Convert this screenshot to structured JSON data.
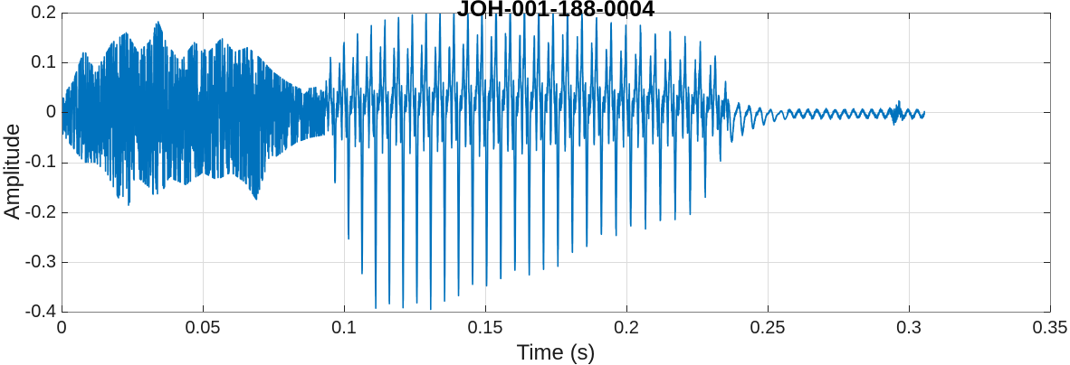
{
  "figure": {
    "background": "#ffffff"
  },
  "chart_data": {
    "type": "line",
    "title": "JOH-001-188-0004",
    "xlabel": "Time (s)",
    "ylabel": "Amplitude",
    "xlim": [
      0,
      0.35
    ],
    "ylim": [
      -0.4,
      0.2
    ],
    "xticks": [
      0,
      0.05,
      0.1,
      0.15,
      0.2,
      0.25,
      0.3,
      0.35
    ],
    "xtick_labels": [
      "0",
      "0.05",
      "0.1",
      "0.15",
      "0.2",
      "0.25",
      "0.3",
      "0.35"
    ],
    "yticks": [
      -0.4,
      -0.3,
      -0.2,
      -0.1,
      0,
      0.1,
      0.2
    ],
    "ytick_labels": [
      "-0.4",
      "-0.3",
      "-0.2",
      "-0.1",
      "0",
      "0.1",
      "0.2"
    ],
    "grid": true,
    "legend": null,
    "line_color": "#0072BD",
    "grid_color": "#DCDCDC",
    "axis_color": "#7F7F7F",
    "tick_color": "#262626",
    "text_color": "#1a1a1a",
    "signal": {
      "kind": "speech-waveform",
      "t_start": 0.0,
      "t_end": 0.3055,
      "segments": [
        {
          "name": "fricative-noise",
          "type": "noise",
          "t0": 0.0,
          "t1": 0.093,
          "upper_env": [
            [
              0,
              0.03
            ],
            [
              0.004,
              0.06
            ],
            [
              0.008,
              0.125
            ],
            [
              0.012,
              0.08
            ],
            [
              0.018,
              0.14
            ],
            [
              0.023,
              0.16
            ],
            [
              0.027,
              0.12
            ],
            [
              0.031,
              0.14
            ],
            [
              0.034,
              0.185
            ],
            [
              0.037,
              0.14
            ],
            [
              0.042,
              0.1
            ],
            [
              0.047,
              0.14
            ],
            [
              0.052,
              0.12
            ],
            [
              0.057,
              0.15
            ],
            [
              0.061,
              0.12
            ],
            [
              0.066,
              0.13
            ],
            [
              0.07,
              0.11
            ],
            [
              0.075,
              0.08
            ],
            [
              0.08,
              0.06
            ],
            [
              0.085,
              0.045
            ],
            [
              0.09,
              0.05
            ],
            [
              0.093,
              0.04
            ]
          ],
          "lower_env": [
            [
              0,
              -0.04
            ],
            [
              0.004,
              -0.07
            ],
            [
              0.008,
              -0.1
            ],
            [
              0.012,
              -0.1
            ],
            [
              0.016,
              -0.12
            ],
            [
              0.02,
              -0.17
            ],
            [
              0.023,
              -0.2
            ],
            [
              0.027,
              -0.13
            ],
            [
              0.031,
              -0.15
            ],
            [
              0.034,
              -0.18
            ],
            [
              0.038,
              -0.13
            ],
            [
              0.044,
              -0.145
            ],
            [
              0.05,
              -0.12
            ],
            [
              0.055,
              -0.135
            ],
            [
              0.06,
              -0.12
            ],
            [
              0.065,
              -0.14
            ],
            [
              0.069,
              -0.175
            ],
            [
              0.073,
              -0.1
            ],
            [
              0.078,
              -0.08
            ],
            [
              0.083,
              -0.06
            ],
            [
              0.088,
              -0.05
            ],
            [
              0.093,
              -0.045
            ]
          ]
        },
        {
          "name": "voiced-vowel",
          "type": "voiced",
          "t0": 0.093,
          "t1": 0.236,
          "f0_start": 210,
          "f0_end": 186,
          "upper_env": [
            [
              0.093,
              0.05
            ],
            [
              0.096,
              0.09
            ],
            [
              0.1,
              0.11
            ],
            [
              0.107,
              0.12
            ],
            [
              0.115,
              0.135
            ],
            [
              0.125,
              0.145
            ],
            [
              0.135,
              0.15
            ],
            [
              0.145,
              0.16
            ],
            [
              0.152,
              0.17
            ],
            [
              0.158,
              0.175
            ],
            [
              0.165,
              0.17
            ],
            [
              0.172,
              0.16
            ],
            [
              0.18,
              0.155
            ],
            [
              0.19,
              0.145
            ],
            [
              0.198,
              0.13
            ],
            [
              0.207,
              0.12
            ],
            [
              0.215,
              0.115
            ],
            [
              0.222,
              0.11
            ],
            [
              0.228,
              0.095
            ],
            [
              0.233,
              0.08
            ],
            [
              0.236,
              0.04
            ]
          ],
          "lower_env": [
            [
              0.093,
              -0.06
            ],
            [
              0.096,
              -0.12
            ],
            [
              0.099,
              -0.2
            ],
            [
              0.103,
              -0.28
            ],
            [
              0.107,
              -0.34
            ],
            [
              0.111,
              -0.385
            ],
            [
              0.117,
              -0.39
            ],
            [
              0.124,
              -0.385
            ],
            [
              0.132,
              -0.375
            ],
            [
              0.14,
              -0.365
            ],
            [
              0.148,
              -0.355
            ],
            [
              0.155,
              -0.345
            ],
            [
              0.162,
              -0.33
            ],
            [
              0.17,
              -0.315
            ],
            [
              0.178,
              -0.3
            ],
            [
              0.185,
              -0.275
            ],
            [
              0.19,
              -0.255
            ],
            [
              0.197,
              -0.24
            ],
            [
              0.204,
              -0.23
            ],
            [
              0.212,
              -0.22
            ],
            [
              0.22,
              -0.2
            ],
            [
              0.226,
              -0.195
            ],
            [
              0.23,
              -0.13
            ],
            [
              0.234,
              -0.09
            ],
            [
              0.236,
              -0.07
            ]
          ]
        },
        {
          "name": "decay",
          "type": "damped-oscillation",
          "t0": 0.236,
          "t1": 0.257,
          "freq": 265,
          "upper_amp": [
            0.028,
            0.006
          ],
          "lower_amp": [
            0.065,
            0.01
          ]
        },
        {
          "name": "tail",
          "type": "low-ripple",
          "t0": 0.257,
          "t1": 0.3055,
          "freq": 310,
          "amp": 0.007,
          "base": -0.003,
          "noise_burst": {
            "t_center": 0.2955,
            "half_width": 0.002,
            "amp": 0.013
          }
        }
      ]
    }
  }
}
